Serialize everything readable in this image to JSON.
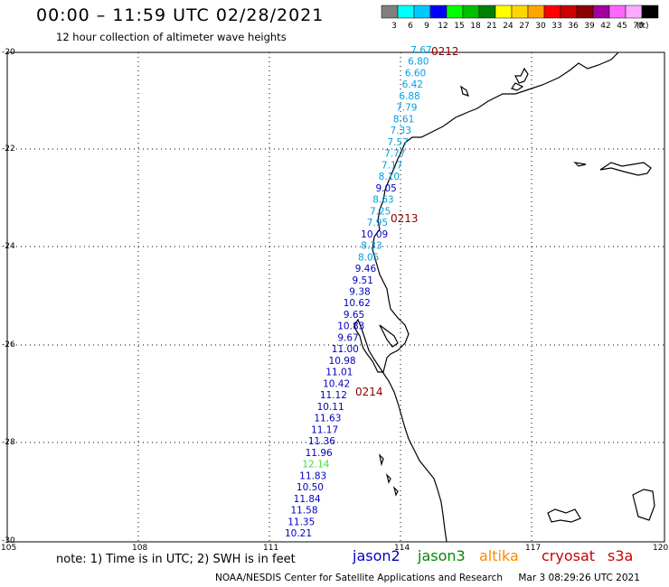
{
  "title": "00:00 – 11:59 UTC 02/28/2021",
  "subtitle": "12 hour collection of altimeter wave heights",
  "colorbar": {
    "unit": "(ft)",
    "bins": [
      {
        "color": "#808080",
        "label": "3"
      },
      {
        "color": "#00ffff",
        "label": "6"
      },
      {
        "color": "#00c8ff",
        "label": "9"
      },
      {
        "color": "#0000ff",
        "label": "12"
      },
      {
        "color": "#00ff00",
        "label": "15"
      },
      {
        "color": "#00c000",
        "label": "18"
      },
      {
        "color": "#008000",
        "label": "21"
      },
      {
        "color": "#ffff00",
        "label": "24"
      },
      {
        "color": "#ffd700",
        "label": "27"
      },
      {
        "color": "#ffa500",
        "label": "30"
      },
      {
        "color": "#ff0000",
        "label": "33"
      },
      {
        "color": "#cc0000",
        "label": "36"
      },
      {
        "color": "#8b0000",
        "label": "39"
      },
      {
        "color": "#a000a0",
        "label": "42"
      },
      {
        "color": "#ff66ff",
        "label": "45"
      },
      {
        "color": "#ffaaff",
        "label": "70"
      },
      {
        "color": "#000000",
        "label": ""
      }
    ]
  },
  "axes": {
    "lat_labels": [
      "-20",
      "-22",
      "-24",
      "-26",
      "-28",
      "-30"
    ],
    "lon_labels": [
      "105",
      "108",
      "111",
      "114",
      "117",
      "120"
    ]
  },
  "time_labels": [
    {
      "text": "0212",
      "color": "#8b0000"
    },
    {
      "text": "0213",
      "color": "#8b0000"
    },
    {
      "text": "0214",
      "color": "#8b0000"
    }
  ],
  "wave_heights": [
    {
      "v": "7.67",
      "c": "#00a0e0"
    },
    {
      "v": "6.80",
      "c": "#00a0e0"
    },
    {
      "v": "6.60",
      "c": "#00a0e0"
    },
    {
      "v": "6.42",
      "c": "#00a0e0"
    },
    {
      "v": "6.88",
      "c": "#00a0e0"
    },
    {
      "v": "7.79",
      "c": "#00a0e0"
    },
    {
      "v": "8.61",
      "c": "#00a0e0"
    },
    {
      "v": "7.33",
      "c": "#00a0e0"
    },
    {
      "v": "7.57",
      "c": "#00a0e0"
    },
    {
      "v": "7.77",
      "c": "#00a0e0"
    },
    {
      "v": "7.17",
      "c": "#00a0e0"
    },
    {
      "v": "8.10",
      "c": "#00a0e0"
    },
    {
      "v": "9.05",
      "c": "#0000c0"
    },
    {
      "v": "8.63",
      "c": "#00a0e0"
    },
    {
      "v": "7.25",
      "c": "#00a0e0"
    },
    {
      "v": "7.95",
      "c": "#00a0e0"
    },
    {
      "v": "10.09",
      "c": "#0000c0"
    },
    {
      "v": "8.33",
      "c": "#00a0e0"
    },
    {
      "v": "8.05",
      "c": "#00a0e0"
    },
    {
      "v": "9.46",
      "c": "#0000c0"
    },
    {
      "v": "9.51",
      "c": "#0000c0"
    },
    {
      "v": "9.38",
      "c": "#0000c0"
    },
    {
      "v": "10.62",
      "c": "#0000c0"
    },
    {
      "v": "9.65",
      "c": "#0000c0"
    },
    {
      "v": "10.83",
      "c": "#0000c0"
    },
    {
      "v": "9.67",
      "c": "#0000c0"
    },
    {
      "v": "11.00",
      "c": "#0000c0"
    },
    {
      "v": "10.98",
      "c": "#0000c0"
    },
    {
      "v": "11.01",
      "c": "#0000c0"
    },
    {
      "v": "10.42",
      "c": "#0000c0"
    },
    {
      "v": "11.12",
      "c": "#0000c0"
    },
    {
      "v": "10.11",
      "c": "#0000c0"
    },
    {
      "v": "11.63",
      "c": "#0000c0"
    },
    {
      "v": "11.17",
      "c": "#0000c0"
    },
    {
      "v": "11.36",
      "c": "#0000c0"
    },
    {
      "v": "11.96",
      "c": "#0000c0"
    },
    {
      "v": "12.14",
      "c": "#40e040"
    },
    {
      "v": "11.83",
      "c": "#0000c0"
    },
    {
      "v": "10.50",
      "c": "#0000c0"
    },
    {
      "v": "11.84",
      "c": "#0000c0"
    },
    {
      "v": "11.58",
      "c": "#0000c0"
    },
    {
      "v": "11.35",
      "c": "#0000c0"
    },
    {
      "v": "10.21",
      "c": "#0000c0"
    }
  ],
  "note": "note: 1) Time is in UTC; 2) SWH is in feet",
  "missions": [
    {
      "name": "jason2",
      "color": "#0000cc"
    },
    {
      "name": "jason3",
      "color": "#008800"
    },
    {
      "name": "altika",
      "color": "#ff8800"
    },
    {
      "name": "cryosat",
      "color": "#cc0000"
    },
    {
      "name": "s3a",
      "color": "#cc0000"
    }
  ],
  "footer_left": "NOAA/NESDIS Center for Satellite Applications and Research",
  "footer_right": "Mar  3 08:29:26 UTC 2021"
}
